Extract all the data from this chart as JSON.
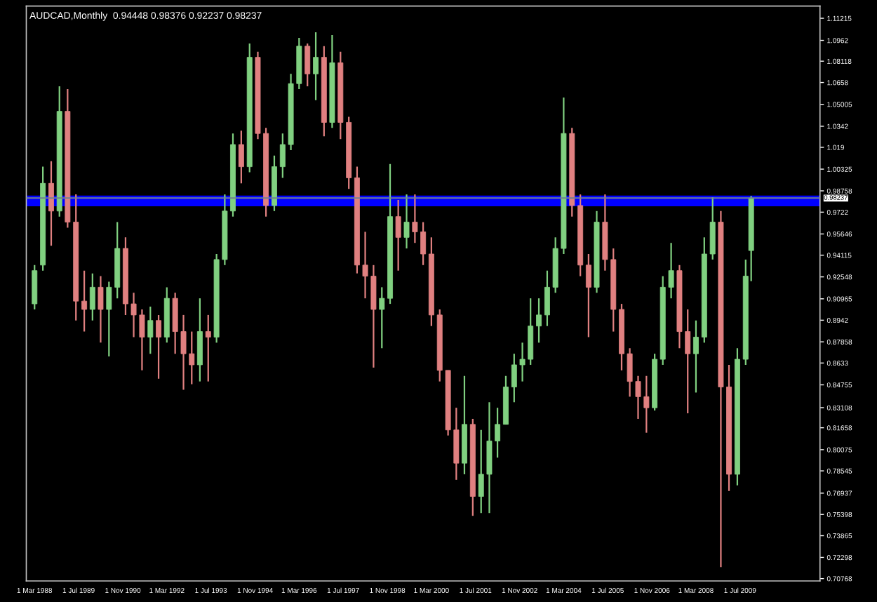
{
  "chart_data": {
    "type": "candlestick",
    "title": "AUDCAD,Monthly  0.94448 0.98376 0.92237 0.98237",
    "x": [
      "1988-03",
      "1988-06",
      "1988-09",
      "1988-12",
      "1989-03",
      "1989-06",
      "1989-09",
      "1989-12",
      "1990-03",
      "1990-06",
      "1990-09",
      "1990-12",
      "1991-03",
      "1991-06",
      "1991-09",
      "1991-12",
      "1992-03",
      "1992-06",
      "1992-09",
      "1992-12",
      "1993-03",
      "1993-06",
      "1993-09",
      "1993-12",
      "1994-03",
      "1994-06",
      "1994-09",
      "1994-12",
      "1995-03",
      "1995-06",
      "1995-09",
      "1995-12",
      "1996-03",
      "1996-06",
      "1996-09",
      "1996-12",
      "1997-03",
      "1997-06",
      "1997-09",
      "1997-12",
      "1998-03",
      "1998-06",
      "1998-09",
      "1998-12",
      "1999-03",
      "1999-06",
      "1999-09",
      "1999-12",
      "2000-03",
      "2000-06",
      "2000-09",
      "2000-12",
      "2001-03",
      "2001-06",
      "2001-09",
      "2001-12",
      "2002-03",
      "2002-06",
      "2002-09",
      "2002-12",
      "2003-03",
      "2003-06",
      "2003-09",
      "2003-12",
      "2004-03",
      "2004-06",
      "2004-09",
      "2004-12",
      "2005-03",
      "2005-06",
      "2005-09",
      "2005-12",
      "2006-03",
      "2006-06",
      "2006-09",
      "2006-12",
      "2007-03",
      "2007-06",
      "2007-09",
      "2007-12",
      "2008-03",
      "2008-06",
      "2008-09",
      "2008-12",
      "2009-03",
      "2009-06",
      "2009-09",
      "2009-11"
    ],
    "ohlc": [
      [
        0.906,
        0.934,
        0.902,
        0.93
      ],
      [
        0.934,
        1.005,
        0.93,
        0.993
      ],
      [
        0.993,
        1.009,
        0.948,
        0.973
      ],
      [
        0.973,
        1.063,
        0.969,
        1.045
      ],
      [
        1.045,
        1.061,
        0.961,
        0.965
      ],
      [
        0.965,
        0.985,
        0.894,
        0.908
      ],
      [
        0.908,
        0.93,
        0.886,
        0.902
      ],
      [
        0.902,
        0.928,
        0.894,
        0.918
      ],
      [
        0.918,
        0.926,
        0.878,
        0.902
      ],
      [
        0.902,
        0.922,
        0.868,
        0.918
      ],
      [
        0.918,
        0.965,
        0.91,
        0.946
      ],
      [
        0.946,
        0.954,
        0.898,
        0.906
      ],
      [
        0.906,
        0.914,
        0.882,
        0.898
      ],
      [
        0.898,
        0.902,
        0.858,
        0.882
      ],
      [
        0.882,
        0.904,
        0.87,
        0.894
      ],
      [
        0.894,
        0.898,
        0.852,
        0.882
      ],
      [
        0.882,
        0.918,
        0.878,
        0.91
      ],
      [
        0.91,
        0.914,
        0.87,
        0.886
      ],
      [
        0.886,
        0.898,
        0.844,
        0.87
      ],
      [
        0.87,
        0.886,
        0.848,
        0.862
      ],
      [
        0.862,
        0.91,
        0.85,
        0.886
      ],
      [
        0.886,
        0.898,
        0.85,
        0.882
      ],
      [
        0.882,
        0.942,
        0.878,
        0.938
      ],
      [
        0.938,
        0.985,
        0.934,
        0.973
      ],
      [
        0.973,
        1.029,
        0.969,
        1.021
      ],
      [
        1.021,
        1.031,
        0.993,
        1.005
      ],
      [
        1.005,
        1.094,
        1.001,
        1.084
      ],
      [
        1.084,
        1.088,
        1.025,
        1.029
      ],
      [
        1.029,
        1.033,
        0.969,
        0.977
      ],
      [
        0.977,
        1.013,
        0.973,
        1.005
      ],
      [
        1.005,
        1.029,
        0.997,
        1.021
      ],
      [
        1.021,
        1.072,
        1.017,
        1.065
      ],
      [
        1.065,
        1.098,
        1.061,
        1.092
      ],
      [
        1.092,
        1.094,
        1.063,
        1.072
      ],
      [
        1.072,
        1.102,
        1.053,
        1.084
      ],
      [
        1.084,
        1.092,
        1.027,
        1.037
      ],
      [
        1.037,
        1.1,
        1.033,
        1.08
      ],
      [
        1.08,
        1.088,
        1.025,
        1.037
      ],
      [
        1.037,
        1.041,
        0.989,
        0.997
      ],
      [
        0.997,
        1.005,
        0.928,
        0.934
      ],
      [
        0.934,
        0.958,
        0.91,
        0.926
      ],
      [
        0.926,
        0.934,
        0.86,
        0.902
      ],
      [
        0.902,
        0.918,
        0.874,
        0.91
      ],
      [
        0.91,
        1.007,
        0.906,
        0.969
      ],
      [
        0.969,
        0.981,
        0.93,
        0.954
      ],
      [
        0.954,
        0.985,
        0.946,
        0.965
      ],
      [
        0.965,
        0.985,
        0.95,
        0.958
      ],
      [
        0.958,
        0.965,
        0.934,
        0.942
      ],
      [
        0.942,
        0.954,
        0.89,
        0.898
      ],
      [
        0.898,
        0.902,
        0.85,
        0.858
      ],
      [
        0.858,
        0.858,
        0.811,
        0.815
      ],
      [
        0.815,
        0.831,
        0.779,
        0.791
      ],
      [
        0.791,
        0.854,
        0.783,
        0.819
      ],
      [
        0.819,
        0.823,
        0.753,
        0.767
      ],
      [
        0.767,
        0.815,
        0.755,
        0.783
      ],
      [
        0.783,
        0.835,
        0.755,
        0.807
      ],
      [
        0.807,
        0.831,
        0.795,
        0.819
      ],
      [
        0.819,
        0.854,
        0.819,
        0.846
      ],
      [
        0.846,
        0.87,
        0.835,
        0.862
      ],
      [
        0.862,
        0.878,
        0.85,
        0.866
      ],
      [
        0.866,
        0.91,
        0.862,
        0.89
      ],
      [
        0.89,
        0.91,
        0.878,
        0.898
      ],
      [
        0.898,
        0.93,
        0.89,
        0.918
      ],
      [
        0.918,
        0.954,
        0.914,
        0.946
      ],
      [
        0.946,
        1.055,
        0.942,
        1.029
      ],
      [
        1.029,
        1.033,
        0.969,
        0.977
      ],
      [
        0.977,
        0.985,
        0.926,
        0.934
      ],
      [
        0.934,
        0.942,
        0.882,
        0.918
      ],
      [
        0.918,
        0.973,
        0.914,
        0.965
      ],
      [
        0.965,
        0.985,
        0.93,
        0.938
      ],
      [
        0.938,
        0.946,
        0.886,
        0.902
      ],
      [
        0.902,
        0.906,
        0.858,
        0.87
      ],
      [
        0.87,
        0.874,
        0.839,
        0.85
      ],
      [
        0.85,
        0.854,
        0.823,
        0.839
      ],
      [
        0.839,
        0.854,
        0.813,
        0.831
      ],
      [
        0.831,
        0.87,
        0.829,
        0.866
      ],
      [
        0.866,
        0.926,
        0.862,
        0.918
      ],
      [
        0.918,
        0.95,
        0.91,
        0.93
      ],
      [
        0.93,
        0.934,
        0.874,
        0.886
      ],
      [
        0.886,
        0.902,
        0.827,
        0.87
      ],
      [
        0.87,
        0.894,
        0.842,
        0.882
      ],
      [
        0.882,
        0.954,
        0.878,
        0.942
      ],
      [
        0.942,
        0.983,
        0.938,
        0.965
      ],
      [
        0.965,
        0.973,
        0.716,
        0.846
      ],
      [
        0.846,
        0.862,
        0.771,
        0.783
      ],
      [
        0.783,
        0.874,
        0.775,
        0.866
      ],
      [
        0.866,
        0.938,
        0.862,
        0.926
      ],
      [
        0.94448,
        0.98376,
        0.92237,
        0.98237
      ]
    ],
    "colors": [
      "#80d080",
      "#80d080",
      "#e08080",
      "#80d080",
      "#e08080",
      "#e08080",
      "#e08080",
      "#80d080",
      "#e08080",
      "#80d080",
      "#80d080",
      "#e08080",
      "#e08080",
      "#e08080",
      "#80d080",
      "#e08080",
      "#80d080",
      "#e08080",
      "#e08080",
      "#e08080",
      "#80d080",
      "#e08080",
      "#80d080",
      "#80d080",
      "#80d080",
      "#e08080",
      "#80d080",
      "#e08080",
      "#e08080",
      "#80d080",
      "#80d080",
      "#80d080",
      "#80d080",
      "#e08080",
      "#80d080",
      "#e08080",
      "#80d080",
      "#e08080",
      "#e08080",
      "#e08080",
      "#e08080",
      "#e08080",
      "#80d080",
      "#80d080",
      "#e08080",
      "#80d080",
      "#e08080",
      "#e08080",
      "#e08080",
      "#e08080",
      "#e08080",
      "#e08080",
      "#80d080",
      "#e08080",
      "#80d080",
      "#80d080",
      "#80d080",
      "#80d080",
      "#80d080",
      "#80d080",
      "#80d080",
      "#80d080",
      "#80d080",
      "#80d080",
      "#80d080",
      "#e08080",
      "#e08080",
      "#e08080",
      "#80d080",
      "#e08080",
      "#e08080",
      "#e08080",
      "#e08080",
      "#e08080",
      "#e08080",
      "#80d080",
      "#80d080",
      "#80d080",
      "#e08080",
      "#e08080",
      "#80d080",
      "#80d080",
      "#80d080",
      "#e08080",
      "#e08080",
      "#80d080",
      "#80d080",
      "#80d080"
    ],
    "xlim": [
      "1987-12",
      "2011-12"
    ],
    "xticks": [
      {
        "value": "1988-03-01",
        "label": "1 Mar 1988"
      },
      {
        "value": "1989-07-01",
        "label": "1 Jul 1989"
      },
      {
        "value": "1990-11-01",
        "label": "1 Nov 1990"
      },
      {
        "value": "1992-03-01",
        "label": "1 Mar 1992"
      },
      {
        "value": "1993-07-01",
        "label": "1 Jul 1993"
      },
      {
        "value": "1994-11-01",
        "label": "1 Nov 1994"
      },
      {
        "value": "1996-03-01",
        "label": "1 Mar 1996"
      },
      {
        "value": "1997-07-01",
        "label": "1 Jul 1997"
      },
      {
        "value": "1998-11-01",
        "label": "1 Nov 1998"
      },
      {
        "value": "2000-03-01",
        "label": "1 Mar 2000"
      },
      {
        "value": "2001-07-01",
        "label": "1 Jul 2001"
      },
      {
        "value": "2002-11-01",
        "label": "1 Nov 2002"
      },
      {
        "value": "2004-03-01",
        "label": "1 Mar 2004"
      },
      {
        "value": "2005-07-01",
        "label": "1 Jul 2005"
      },
      {
        "value": "2006-11-01",
        "label": "1 Nov 2006"
      },
      {
        "value": "2008-03-01",
        "label": "1 Mar 2008"
      },
      {
        "value": "2009-07-01",
        "label": "1 Jul 2009"
      }
    ],
    "ylim": [
      0.706,
      1.121
    ],
    "yticks": [
      0.70768,
      0.72298,
      0.73865,
      0.75398,
      0.76937,
      0.78545,
      0.80075,
      0.81658,
      0.83108,
      0.84755,
      0.8633,
      0.87858,
      0.8942,
      0.90965,
      0.92548,
      0.94115,
      0.95646,
      0.9722,
      0.98758,
      1.00325,
      1.019,
      1.0342,
      1.05005,
      1.0658,
      1.08118,
      1.0962,
      1.11215
    ],
    "ref_lines": [
      {
        "axis": "y",
        "value": 0.98237,
        "label": "0.98237",
        "color": "#708090"
      }
    ],
    "bands": [
      {
        "axis": "y",
        "from": 0.9764,
        "to": 0.9842,
        "color": "#0000ff"
      }
    ],
    "grid": false,
    "legend": false
  }
}
